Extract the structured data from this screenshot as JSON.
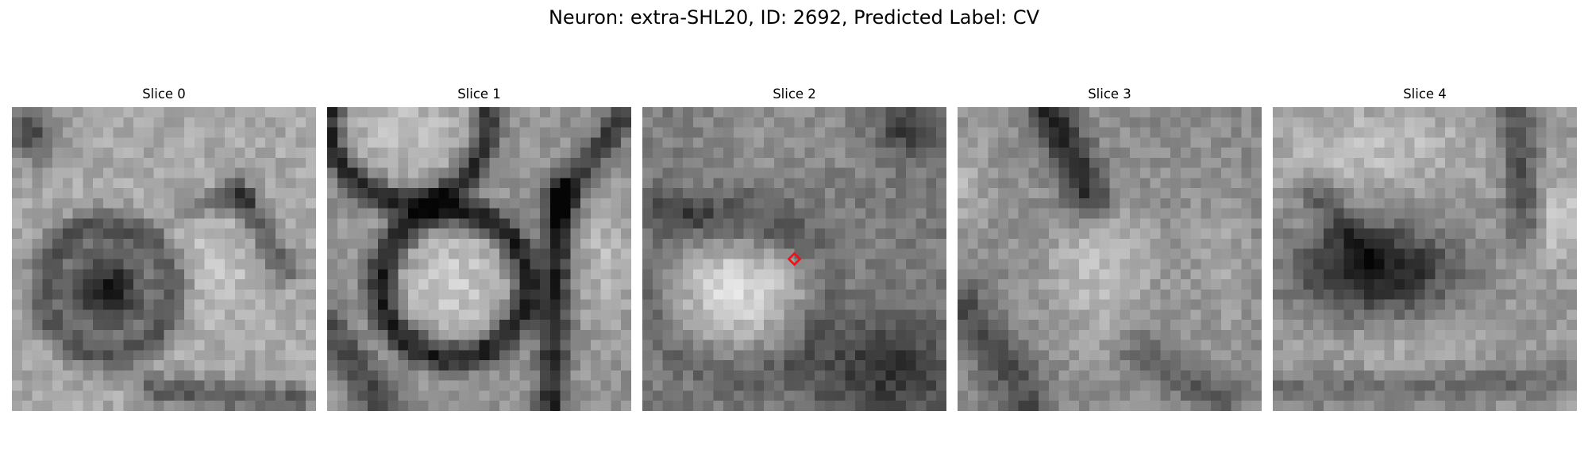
{
  "figure": {
    "title": "Neuron: extra-SHL20, ID: 2692, Predicted Label: CV"
  },
  "panels": [
    {
      "title": "Slice 0"
    },
    {
      "title": "Slice 1"
    },
    {
      "title": "Slice 2",
      "marker": {
        "shape": "diamond",
        "color": "#e8161b"
      }
    },
    {
      "title": "Slice 3"
    },
    {
      "title": "Slice 4"
    }
  ],
  "colors": {
    "background": "#ffffff",
    "marker": "#e8161b"
  }
}
